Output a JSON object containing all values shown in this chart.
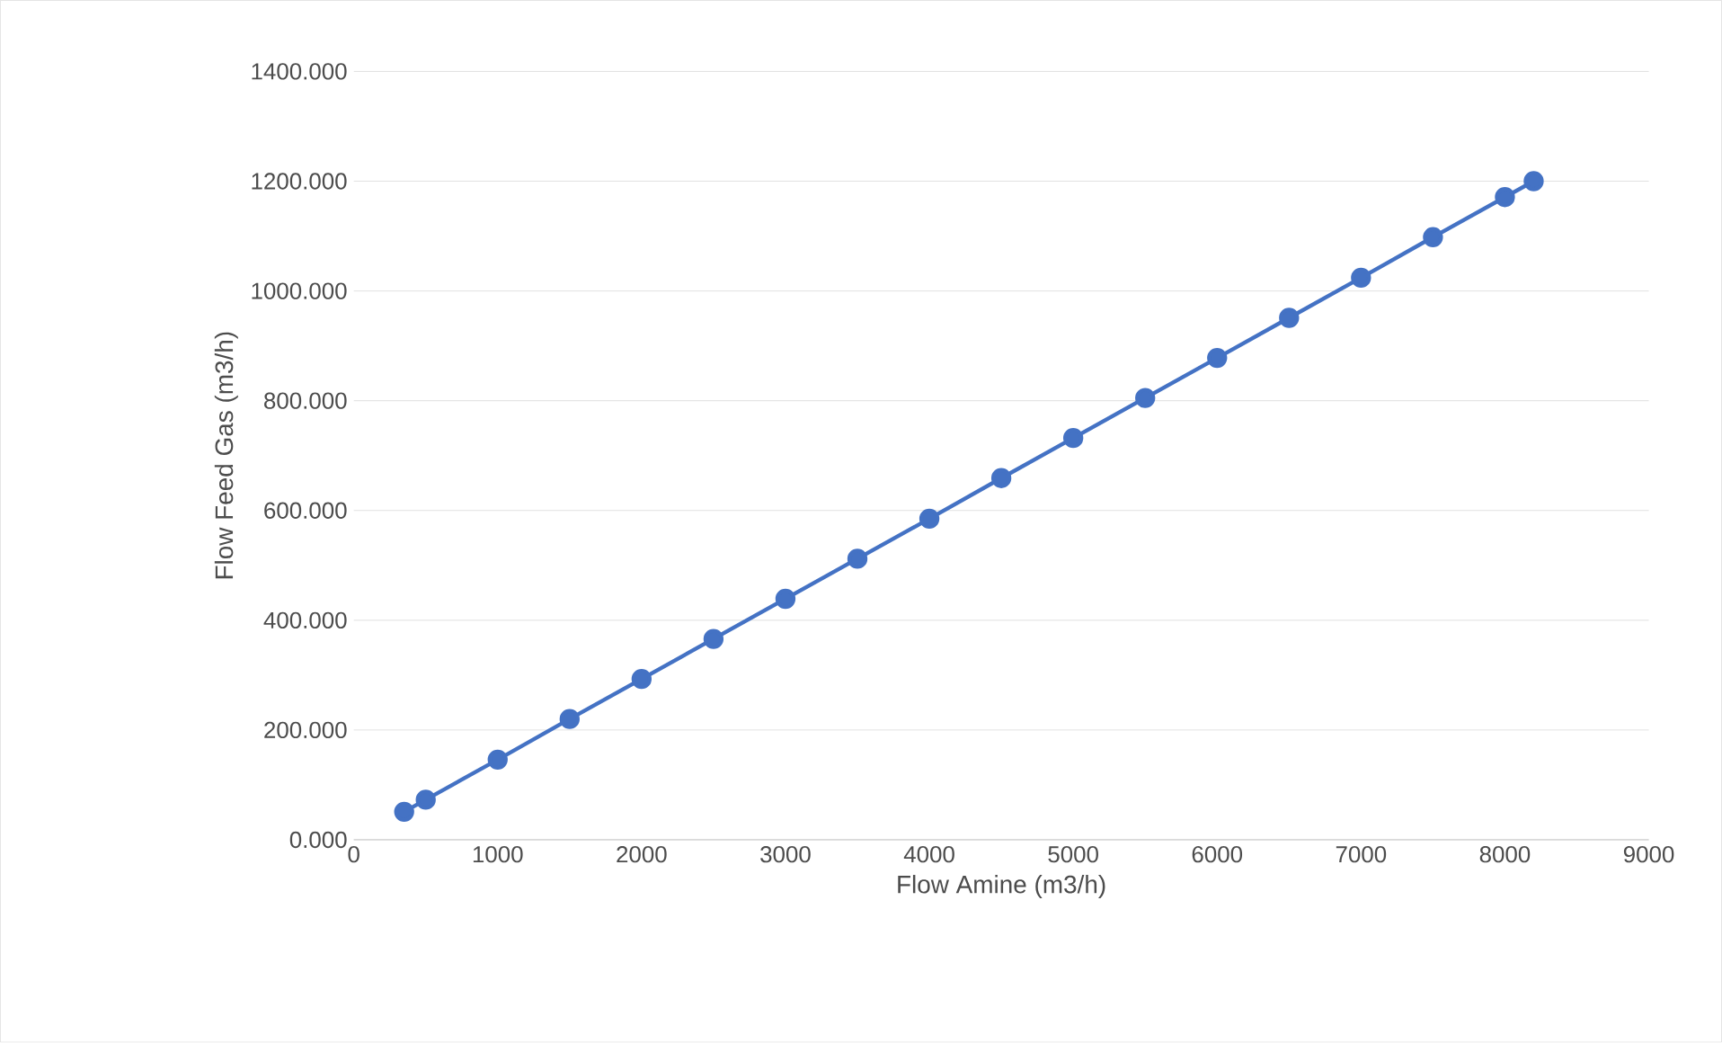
{
  "chart_data": {
    "type": "line",
    "xlabel": "Flow Amine (m3/h)",
    "ylabel": "Flow Feed Gas (m3/h)",
    "series": [
      {
        "color": "#4472c4",
        "x": [
          350,
          500,
          1000,
          1500,
          2000,
          2500,
          3000,
          3500,
          4000,
          4500,
          5000,
          5500,
          6000,
          6500,
          7000,
          7500,
          8000,
          8200
        ],
        "values": [
          51,
          73,
          146,
          220,
          293,
          366,
          439,
          512,
          585,
          659,
          732,
          805,
          878,
          951,
          1024,
          1098,
          1171,
          1200
        ]
      }
    ],
    "xlim": [
      0,
      9000
    ],
    "xticks": [
      0,
      1000,
      2000,
      3000,
      4000,
      5000,
      6000,
      7000,
      8000,
      9000
    ],
    "ylim": [
      0,
      1400
    ],
    "yticks": [
      {
        "value": 0,
        "label": "0.000"
      },
      {
        "value": 200,
        "label": "200.000"
      },
      {
        "value": 400,
        "label": "400.000"
      },
      {
        "value": 600,
        "label": "600.000"
      },
      {
        "value": 800,
        "label": "800.000"
      },
      {
        "value": 1000,
        "label": "1000.000"
      },
      {
        "value": 1200,
        "label": "1200.000"
      },
      {
        "value": 1400,
        "label": "1400.000"
      }
    ],
    "grid": "y",
    "marker": "circle",
    "line_style": "solid"
  }
}
